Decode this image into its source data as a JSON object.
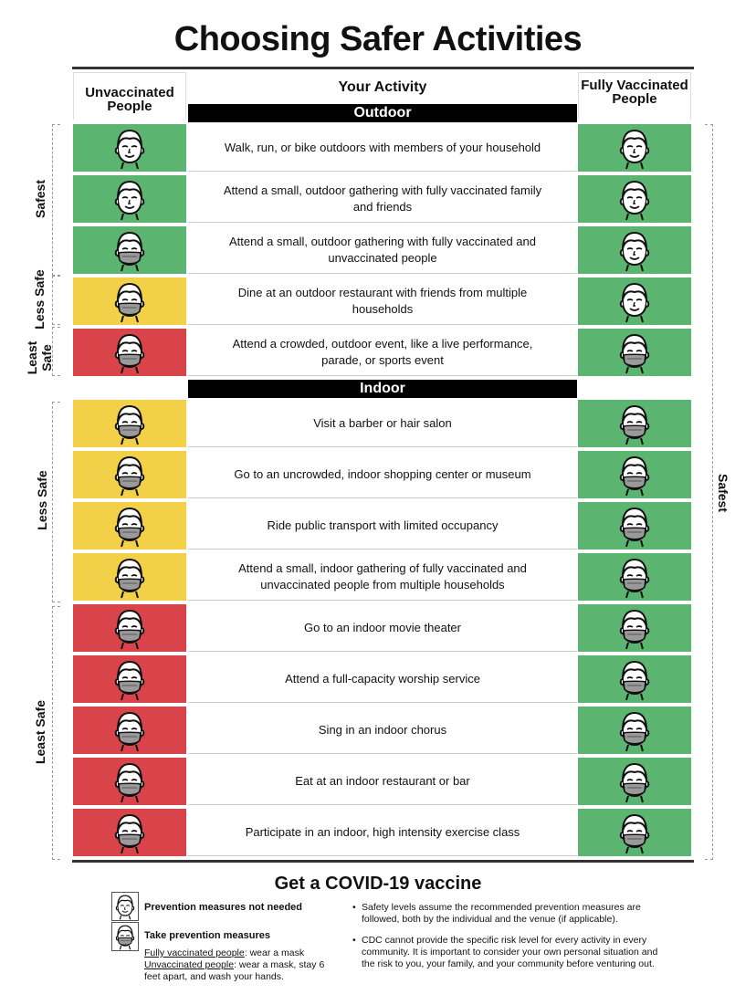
{
  "title": "Choosing Safer Activities",
  "headers": {
    "left": "Unvaccinated People",
    "middle": "Your Activity",
    "right": "Fully Vaccinated People"
  },
  "sections": {
    "outdoor": "Outdoor",
    "indoor": "Indoor"
  },
  "colors": {
    "green": "#5bb46f",
    "yellow": "#f2d047",
    "red": "#d9444b"
  },
  "activities": [
    {
      "text": "Walk, run, or bike outdoors with members of your household",
      "unvaccinated": "green",
      "unvax_mask": false,
      "vaccinated_mask": false
    },
    {
      "text": "Attend a small, outdoor gathering with fully vaccinated family and friends",
      "unvaccinated": "green",
      "unvax_mask": false,
      "vaccinated_mask": false
    },
    {
      "text": "Attend a small, outdoor gathering with fully vaccinated and unvaccinated people",
      "unvaccinated": "green",
      "unvax_mask": true,
      "vaccinated_mask": false
    },
    {
      "text": "Dine at an outdoor restaurant with friends from multiple households",
      "unvaccinated": "yellow",
      "unvax_mask": true,
      "vaccinated_mask": false
    },
    {
      "text": "Attend a crowded, outdoor event, like a live performance, parade, or sports event",
      "unvaccinated": "red",
      "unvax_mask": true,
      "vaccinated_mask": true
    },
    {
      "text": "Visit a barber or hair salon",
      "unvaccinated": "yellow",
      "unvax_mask": true,
      "vaccinated_mask": true
    },
    {
      "text": "Go to an uncrowded, indoor shopping center or museum",
      "unvaccinated": "yellow",
      "unvax_mask": true,
      "vaccinated_mask": true
    },
    {
      "text": "Ride public transport with limited occupancy",
      "unvaccinated": "yellow",
      "unvax_mask": true,
      "vaccinated_mask": true
    },
    {
      "text": "Attend a small, indoor gathering of fully vaccinated and unvaccinated people from multiple households",
      "unvaccinated": "yellow",
      "unvax_mask": true,
      "vaccinated_mask": true
    },
    {
      "text": "Go to an indoor movie theater",
      "unvaccinated": "red",
      "unvax_mask": true,
      "vaccinated_mask": true
    },
    {
      "text": "Attend a full-capacity worship service",
      "unvaccinated": "red",
      "unvax_mask": true,
      "vaccinated_mask": true
    },
    {
      "text": "Sing in an indoor chorus",
      "unvaccinated": "red",
      "unvax_mask": true,
      "vaccinated_mask": true
    },
    {
      "text": "Eat at an indoor restaurant or bar",
      "unvaccinated": "red",
      "unvax_mask": true,
      "vaccinated_mask": true
    },
    {
      "text": "Participate in an indoor, high intensity exercise class",
      "unvaccinated": "red",
      "unvax_mask": true,
      "vaccinated_mask": true
    }
  ],
  "side_labels": {
    "safest": "Safest",
    "less_safe_outdoor": "Less Safe",
    "least_safe_outdoor": "Least Safe",
    "less_safe_indoor": "Less Safe",
    "least_safe_indoor": "Least Safe",
    "right_safest": "Safest"
  },
  "footer": {
    "title": "Get a COVID-19 vaccine",
    "no_mask_label": "Prevention measures not needed",
    "mask_label": "Take prevention measures",
    "vax_prefix": "Fully vaccinated people",
    "vax_text": ": wear a mask",
    "unvax_prefix": "Unvaccinated people",
    "unvax_text": ": wear a mask, stay 6 feet apart, and wash your hands.",
    "note1": "Safety levels assume the recommended prevention measures are followed, both by the individual and the venue (if applicable).",
    "note2": "CDC cannot provide the specific risk level for every activity in every community. It is important to consider your own personal situation and the risk to you, your family, and your community before venturing out."
  }
}
